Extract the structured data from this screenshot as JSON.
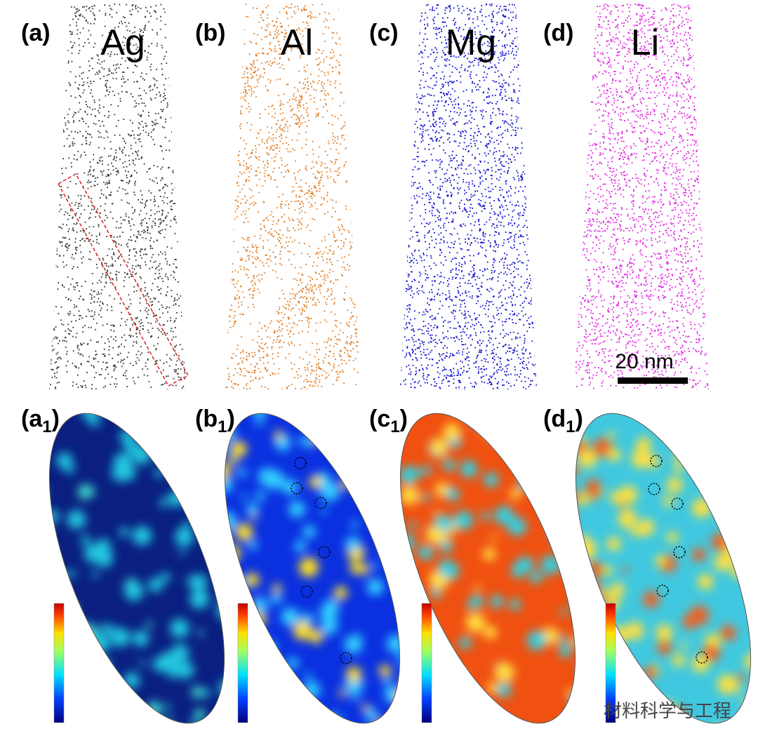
{
  "panels_top": [
    {
      "label": "(a)",
      "element": "Ag"
    },
    {
      "label": "(b)",
      "element": "Al"
    },
    {
      "label": "(c)",
      "element": "Mg"
    },
    {
      "label": "(d)",
      "element": "Li"
    }
  ],
  "scale_bar": "20 nm",
  "panels_bottom": [
    {
      "label": "(a",
      "sub": "1",
      "close": ")"
    },
    {
      "label": "(b",
      "sub": "1",
      "close": ")"
    },
    {
      "label": "(c",
      "sub": "1",
      "close": ")"
    },
    {
      "label": "(d",
      "sub": "1",
      "close": ")"
    }
  ],
  "watermark": "材料科学与工程"
}
